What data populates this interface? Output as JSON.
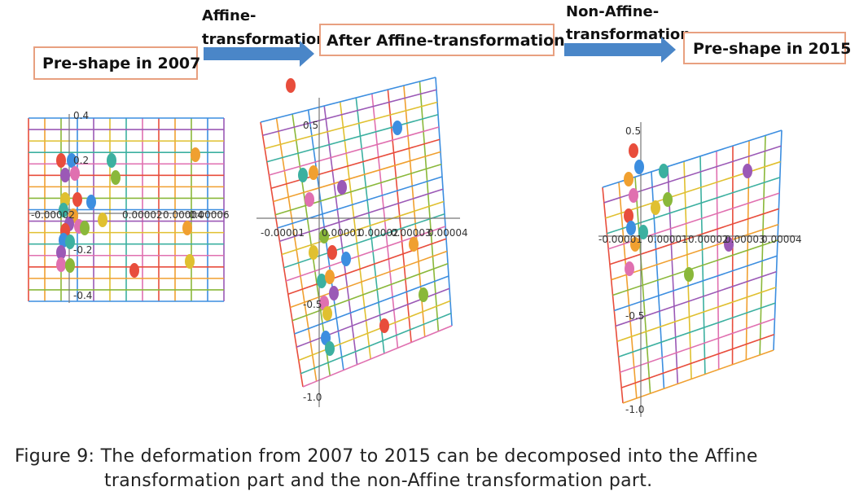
{
  "header": {
    "box1": "Pre-shape in 2007",
    "arrow1": [
      "Affine-",
      "transformation"
    ],
    "box2": "After Affine-transformation",
    "arrow2": [
      "Non-Affine-",
      "transformation"
    ],
    "box3": "Pre-shape in 2015"
  },
  "panels": [
    {
      "y_ticks": [
        "0.4",
        "0.2",
        "-0.2",
        "-0.4"
      ],
      "x_ticks": [
        "-0.00002",
        "0.00002",
        "0.00004",
        "0.00006"
      ]
    },
    {
      "y_ticks": [
        "0.5",
        "-0.5",
        "-1.0"
      ],
      "x_ticks": [
        "-0.00001",
        "0.00001",
        "0.00002",
        "0.00003",
        "0.00004"
      ]
    },
    {
      "y_ticks": [
        "0.5",
        "-0.5",
        "-1.0"
      ],
      "x_ticks": [
        "-0.00001",
        "0.00001",
        "0.00002",
        "0.00003",
        "0.00004"
      ]
    }
  ],
  "caption": [
    "Figure 9: The deformation from 2007 to 2015 can be decomposed into the Affine",
    "transformation part and the non-Affine transformation part."
  ]
}
